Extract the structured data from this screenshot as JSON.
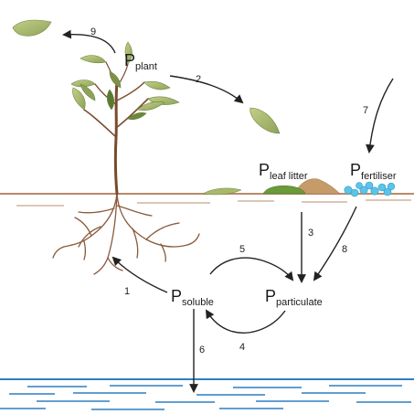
{
  "pools": [
    {
      "id": "plant",
      "main": "P",
      "sub": "plant"
    },
    {
      "id": "leaf_litter",
      "main": "P",
      "sub": "leaf litter"
    },
    {
      "id": "fertiliser",
      "main": "P",
      "sub": "fertiliser"
    },
    {
      "id": "soluble",
      "main": "P",
      "sub": "soluble"
    },
    {
      "id": "particulate",
      "main": "P",
      "sub": "particulate"
    }
  ],
  "flows": [
    {
      "number": "1",
      "from": "soluble",
      "to": "plant"
    },
    {
      "number": "2",
      "from": "plant",
      "to": "leaf_litter"
    },
    {
      "number": "3",
      "from": "leaf_litter",
      "to": "particulate"
    },
    {
      "number": "4",
      "from": "particulate",
      "to": "soluble"
    },
    {
      "number": "5",
      "from": "soluble",
      "to": "particulate"
    },
    {
      "number": "6",
      "from": "soluble",
      "to": "water"
    },
    {
      "number": "7",
      "from": "outside",
      "to": "fertiliser"
    },
    {
      "number": "8",
      "from": "fertiliser",
      "to": "particulate"
    },
    {
      "number": "9",
      "from": "plant",
      "to": "outside"
    }
  ],
  "colors": {
    "ground": "#b98a6a",
    "root": "#8b5a3c",
    "stem": "#7a4a2c",
    "leaf": "#a9b96a",
    "leaf_dark": "#5a7a34",
    "litter_brown": "#c79a6a",
    "litter_green": "#6a9a3a",
    "fertiliser": "#5ec3e8",
    "water": "#2f7fc1"
  }
}
